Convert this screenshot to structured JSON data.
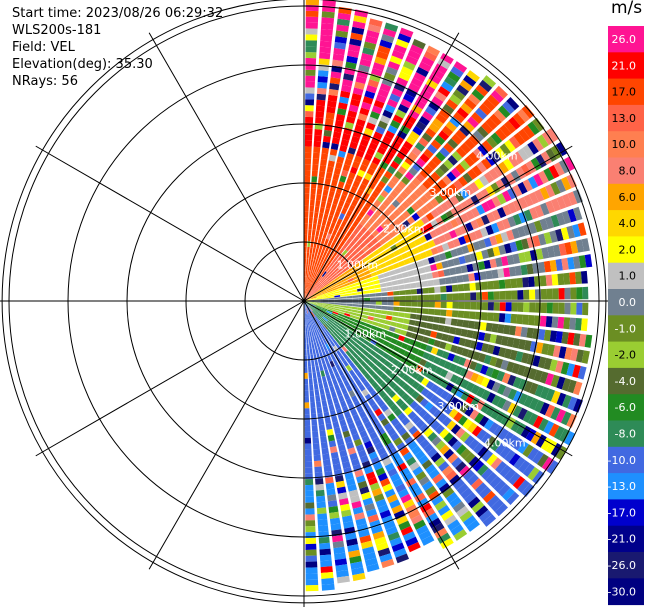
{
  "header": {
    "start_time": "Start time: 2023/08/26 06:29:32",
    "instrument": "WLS200s-181",
    "field": "Field: VEL",
    "elevation": "Elevation(deg): 35.30",
    "nrays": "NRays: 56"
  },
  "chart_data": {
    "type": "heatmap",
    "projection": "polar-ppi",
    "title": "",
    "units": "m/s",
    "range_rings_km": [
      1.0,
      2.0,
      3.0,
      4.0
    ],
    "range_ring_labels": [
      "1.00km",
      "2.00km",
      "3.00km",
      "4.00km"
    ],
    "azimuth_span_deg": [
      0,
      180
    ],
    "rays": 56,
    "colorbar": {
      "bins": [
        {
          "label": "26.0",
          "color": "#ff1493"
        },
        {
          "label": "21.0",
          "color": "#ff0000"
        },
        {
          "label": "17.0",
          "color": "#ff4500"
        },
        {
          "label": "13.0",
          "color": "#ff6347"
        },
        {
          "label": "10.0",
          "color": "#ff7f50"
        },
        {
          "label": "8.0",
          "color": "#fa8072"
        },
        {
          "label": "6.0",
          "color": "#ffa500"
        },
        {
          "label": "4.0",
          "color": "#ffd700"
        },
        {
          "label": "2.0",
          "color": "#ffff00"
        },
        {
          "label": "1.0",
          "color": "#c0c0c0"
        },
        {
          "label": "0.0",
          "color": "#708090"
        },
        {
          "label": "-1.0",
          "color": "#6b8e23"
        },
        {
          "label": "-2.0",
          "color": "#9acd32"
        },
        {
          "label": "-4.0",
          "color": "#556b2f"
        },
        {
          "label": "-6.0",
          "color": "#228b22"
        },
        {
          "label": "-8.0",
          "color": "#2e8b57"
        },
        {
          "label": "-10.0",
          "color": "#4169e1"
        },
        {
          "label": "-13.0",
          "color": "#1e90ff"
        },
        {
          "label": "-17.0",
          "color": "#0000cd"
        },
        {
          "label": "-21.0",
          "color": "#00008b"
        },
        {
          "label": "-26.0",
          "color": "#191970"
        },
        {
          "label": "-30.0",
          "color": "#000080"
        }
      ]
    }
  }
}
